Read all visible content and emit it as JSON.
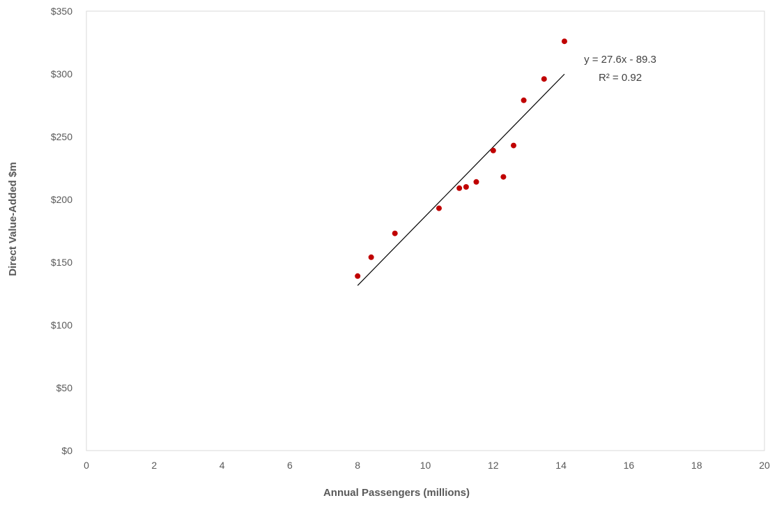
{
  "chart_data": {
    "type": "scatter",
    "title": "",
    "xlabel": "Annual Passengers (millions)",
    "ylabel": "Direct Value-Added $m",
    "xlim": [
      0,
      20
    ],
    "ylim": [
      0,
      350
    ],
    "x_ticks": [
      0,
      2,
      4,
      6,
      8,
      10,
      12,
      14,
      16,
      18,
      20
    ],
    "x_tick_labels": [
      "0",
      "2",
      "4",
      "6",
      "8",
      "10",
      "12",
      "14",
      "16",
      "18",
      "20"
    ],
    "y_ticks": [
      0,
      50,
      100,
      150,
      200,
      250,
      300,
      350
    ],
    "y_tick_labels": [
      "$0",
      "$50",
      "$100",
      "$150",
      "$200",
      "$250",
      "$300",
      "$350"
    ],
    "grid": false,
    "legend": "none",
    "point_color": "#C00000",
    "series": [
      {
        "x": [
          8.0,
          8.4,
          9.1,
          10.4,
          11.0,
          11.2,
          11.5,
          12.0,
          12.3,
          12.6,
          12.9,
          13.5,
          14.1
        ],
        "y": [
          139,
          154,
          173,
          193,
          209,
          210,
          214,
          239,
          218,
          243,
          279,
          296,
          326
        ]
      }
    ],
    "trendline": {
      "type": "linear",
      "slope": 27.6,
      "intercept": -89.3,
      "x_range": [
        8.0,
        14.1
      ],
      "equation_label": "y = 27.6x - 89.3",
      "r2_label": "R² = 0.92",
      "color": "#000000"
    }
  }
}
